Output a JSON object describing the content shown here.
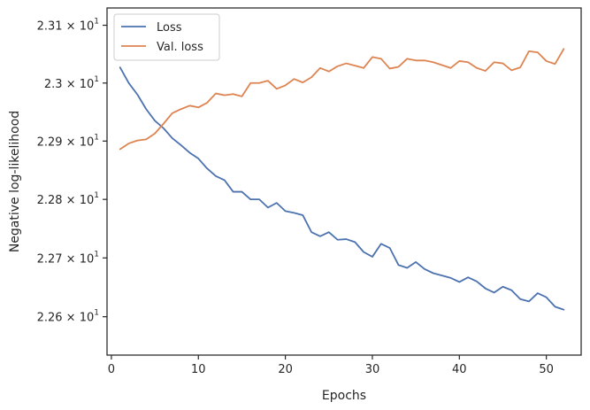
{
  "chart_data": {
    "type": "line",
    "xlabel": "Epochs",
    "ylabel": "Negative log-likelihood",
    "log_y": true,
    "xlim": [
      -0.5,
      54.0
    ],
    "ylim": [
      22.535,
      23.13
    ],
    "xticks": [
      {
        "value": 0,
        "label": "0"
      },
      {
        "value": 10,
        "label": "10"
      },
      {
        "value": 20,
        "label": "20"
      },
      {
        "value": 30,
        "label": "30"
      },
      {
        "value": 40,
        "label": "40"
      },
      {
        "value": 50,
        "label": "50"
      }
    ],
    "yticks": [
      {
        "value": 22.6,
        "mantissa": "2.26",
        "base": "10",
        "exp": "1"
      },
      {
        "value": 22.7,
        "mantissa": "2.27",
        "base": "10",
        "exp": "1"
      },
      {
        "value": 22.8,
        "mantissa": "2.28",
        "base": "10",
        "exp": "1"
      },
      {
        "value": 22.9,
        "mantissa": "2.29",
        "base": "10",
        "exp": "1"
      },
      {
        "value": 23.0,
        "mantissa": "2.3",
        "base": "10",
        "exp": "1"
      },
      {
        "value": 23.1,
        "mantissa": "2.31",
        "base": "10",
        "exp": "1"
      }
    ],
    "grid": false,
    "legend_position": "top-left",
    "x": [
      1,
      2,
      3,
      4,
      5,
      6,
      7,
      8,
      9,
      10,
      11,
      12,
      13,
      14,
      15,
      16,
      17,
      18,
      19,
      20,
      21,
      22,
      23,
      24,
      25,
      26,
      27,
      28,
      29,
      30,
      31,
      32,
      33,
      34,
      35,
      36,
      37,
      38,
      39,
      40,
      41,
      42,
      43,
      44,
      45,
      46,
      47,
      48,
      49,
      50,
      51,
      52
    ],
    "series": [
      {
        "name": "Loss",
        "color": "#4c72b0",
        "values": [
          23.027,
          23.0,
          22.98,
          22.955,
          22.935,
          22.922,
          22.905,
          22.893,
          22.88,
          22.87,
          22.853,
          22.84,
          22.833,
          22.813,
          22.813,
          22.8,
          22.8,
          22.786,
          22.794,
          22.78,
          22.777,
          22.773,
          22.744,
          22.737,
          22.744,
          22.731,
          22.732,
          22.727,
          22.71,
          22.702,
          22.724,
          22.717,
          22.688,
          22.683,
          22.693,
          22.681,
          22.674,
          22.67,
          22.666,
          22.659,
          22.667,
          22.66,
          22.648,
          22.641,
          22.651,
          22.645,
          22.63,
          22.626,
          22.64,
          22.633,
          22.617,
          22.612
        ]
      },
      {
        "name": "Val. loss",
        "color": "#dd8452",
        "values": [
          22.886,
          22.896,
          22.901,
          22.903,
          22.913,
          22.93,
          22.948,
          22.955,
          22.961,
          22.958,
          22.966,
          22.982,
          22.979,
          22.981,
          22.977,
          23.0,
          23.0,
          23.004,
          22.99,
          22.996,
          23.007,
          23.001,
          23.01,
          23.026,
          23.02,
          23.029,
          23.034,
          23.03,
          23.026,
          23.045,
          23.042,
          23.025,
          23.028,
          23.042,
          23.039,
          23.039,
          23.036,
          23.031,
          23.026,
          23.038,
          23.036,
          23.026,
          23.021,
          23.036,
          23.034,
          23.022,
          23.027,
          23.055,
          23.053,
          23.038,
          23.033,
          23.059
        ]
      }
    ]
  }
}
